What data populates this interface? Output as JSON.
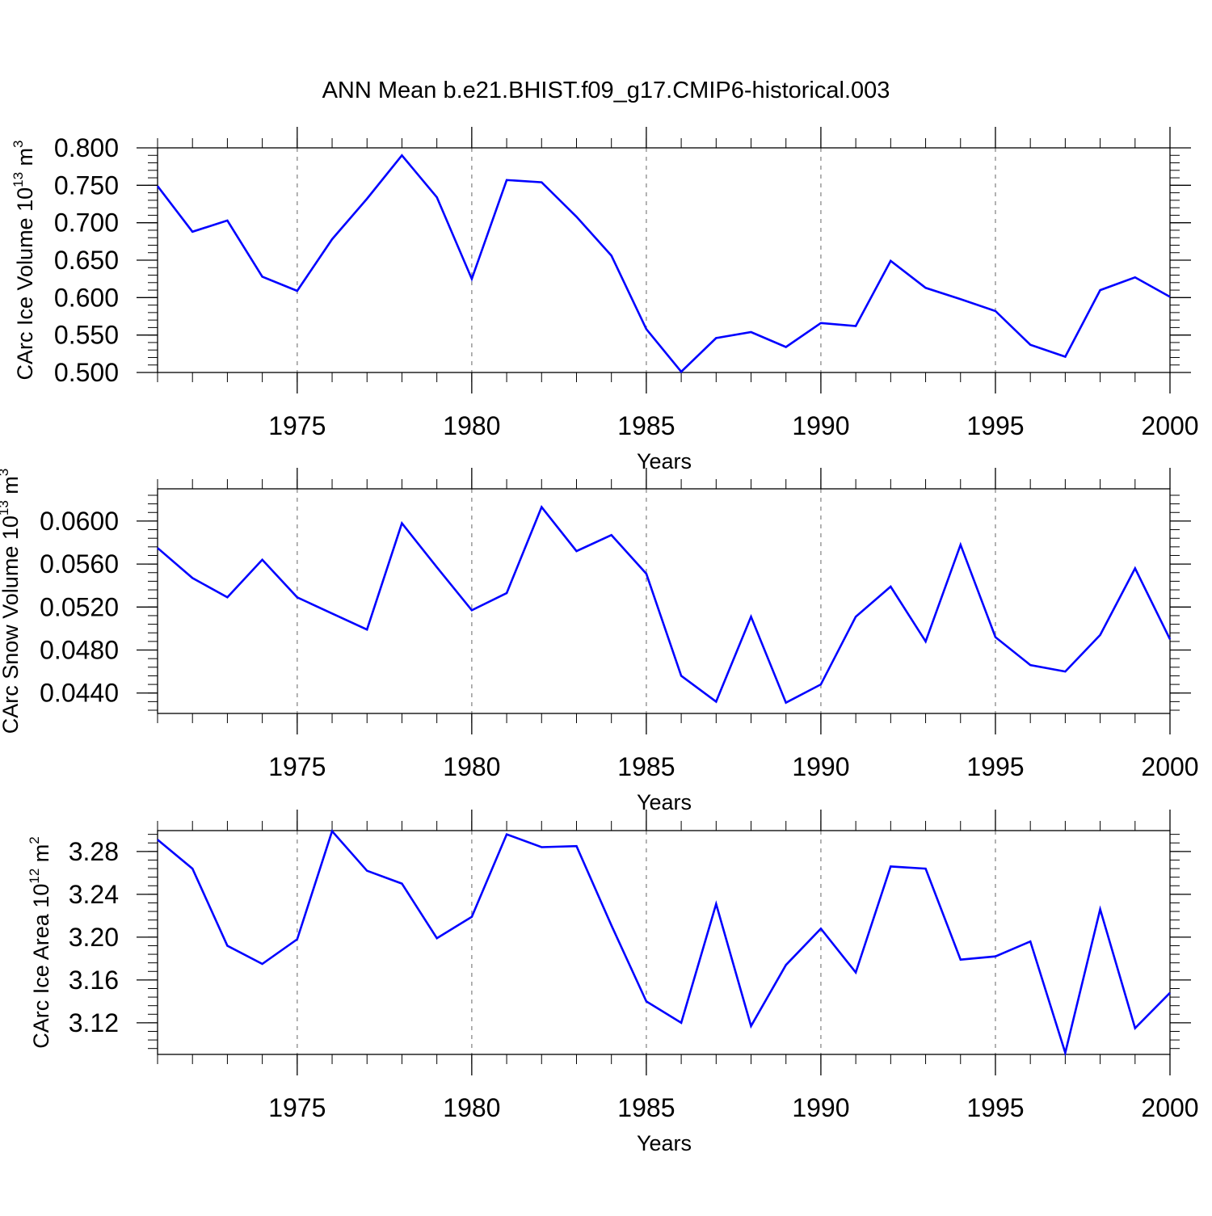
{
  "title": "ANN Mean b.e21.BHIST.f09_g17.CMIP6-historical.003",
  "line_color": "#0000ff",
  "chart_data": [
    {
      "type": "line",
      "ylabel": "CArc Ice Volume 10",
      "ylabel_exp": "13",
      "ylabel_unit": " m",
      "ylabel_unit_exp": "3",
      "xlabel": "Years",
      "xlim": [
        1971,
        2000
      ],
      "ylim": [
        0.5,
        0.8
      ],
      "yticks": [
        0.5,
        0.55,
        0.6,
        0.65,
        0.7,
        0.75,
        0.8
      ],
      "ytick_labels": [
        "0.500",
        "0.550",
        "0.600",
        "0.650",
        "0.700",
        "0.750",
        "0.800"
      ],
      "xticks": [
        1975,
        1980,
        1985,
        1990,
        1995,
        2000
      ],
      "xtick_labels": [
        "1975",
        "1980",
        "1985",
        "1990",
        "1995",
        "2000"
      ],
      "x": [
        1971,
        1972,
        1973,
        1974,
        1975,
        1976,
        1977,
        1978,
        1979,
        1980,
        1981,
        1982,
        1983,
        1984,
        1985,
        1986,
        1987,
        1988,
        1989,
        1990,
        1991,
        1992,
        1993,
        1994,
        1995,
        1996,
        1997,
        1998,
        1999,
        2000
      ],
      "series": [
        {
          "name": "CArc Ice Volume",
          "values": [
            0.749,
            0.688,
            0.703,
            0.628,
            0.609,
            0.678,
            0.732,
            0.79,
            0.734,
            0.625,
            0.757,
            0.754,
            0.708,
            0.656,
            0.558,
            0.501,
            0.546,
            0.554,
            0.534,
            0.566,
            0.562,
            0.649,
            0.613,
            0.598,
            0.582,
            0.537,
            0.521,
            0.61,
            0.627,
            0.601
          ]
        }
      ]
    },
    {
      "type": "line",
      "ylabel": "CArc Snow Volume 10",
      "ylabel_exp": "13",
      "ylabel_unit": " m",
      "ylabel_unit_exp": "3",
      "xlabel": "Years",
      "xlim": [
        1971,
        2000
      ],
      "ylim": [
        0.0421,
        0.063
      ],
      "yticks": [
        0.044,
        0.048,
        0.052,
        0.056,
        0.06
      ],
      "ytick_labels": [
        "0.0440",
        "0.0480",
        "0.0520",
        "0.0560",
        "0.0600"
      ],
      "xticks": [
        1975,
        1980,
        1985,
        1990,
        1995,
        2000
      ],
      "xtick_labels": [
        "1975",
        "1980",
        "1985",
        "1990",
        "1995",
        "2000"
      ],
      "x": [
        1971,
        1972,
        1973,
        1974,
        1975,
        1976,
        1977,
        1978,
        1979,
        1980,
        1981,
        1982,
        1983,
        1984,
        1985,
        1986,
        1987,
        1988,
        1989,
        1990,
        1991,
        1992,
        1993,
        1994,
        1995,
        1996,
        1997,
        1998,
        1999,
        2000
      ],
      "series": [
        {
          "name": "CArc Snow Volume",
          "values": [
            0.0575,
            0.0547,
            0.0529,
            0.0564,
            0.0529,
            0.0514,
            0.0499,
            0.0598,
            0.0557,
            0.0517,
            0.0533,
            0.0613,
            0.0572,
            0.0587,
            0.0551,
            0.0456,
            0.0432,
            0.0511,
            0.0431,
            0.0448,
            0.0511,
            0.0539,
            0.0488,
            0.0578,
            0.0492,
            0.0466,
            0.046,
            0.0494,
            0.0556,
            0.049
          ]
        }
      ]
    },
    {
      "type": "line",
      "ylabel": "CArc Ice Area 10",
      "ylabel_exp": "12",
      "ylabel_unit": " m",
      "ylabel_unit_exp": "2",
      "xlabel": "Years",
      "xlim": [
        1971,
        2000
      ],
      "ylim": [
        3.0905,
        3.2995
      ],
      "yticks": [
        3.12,
        3.16,
        3.2,
        3.24,
        3.28
      ],
      "ytick_labels": [
        "3.12",
        "3.16",
        "3.20",
        "3.24",
        "3.28"
      ],
      "xticks": [
        1975,
        1980,
        1985,
        1990,
        1995,
        2000
      ],
      "xtick_labels": [
        "1975",
        "1980",
        "1985",
        "1990",
        "1995",
        "2000"
      ],
      "x": [
        1971,
        1972,
        1973,
        1974,
        1975,
        1976,
        1977,
        1978,
        1979,
        1980,
        1981,
        1982,
        1983,
        1984,
        1985,
        1986,
        1987,
        1988,
        1989,
        1990,
        1991,
        1992,
        1993,
        1994,
        1995,
        1996,
        1997,
        1998,
        1999,
        2000
      ],
      "series": [
        {
          "name": "CArc Ice Area",
          "values": [
            3.291,
            3.264,
            3.192,
            3.175,
            3.198,
            3.299,
            3.262,
            3.25,
            3.199,
            3.219,
            3.296,
            3.284,
            3.285,
            3.211,
            3.14,
            3.12,
            3.231,
            3.117,
            3.174,
            3.208,
            3.167,
            3.266,
            3.264,
            3.179,
            3.182,
            3.196,
            3.092,
            3.226,
            3.115,
            3.148
          ]
        }
      ]
    }
  ]
}
